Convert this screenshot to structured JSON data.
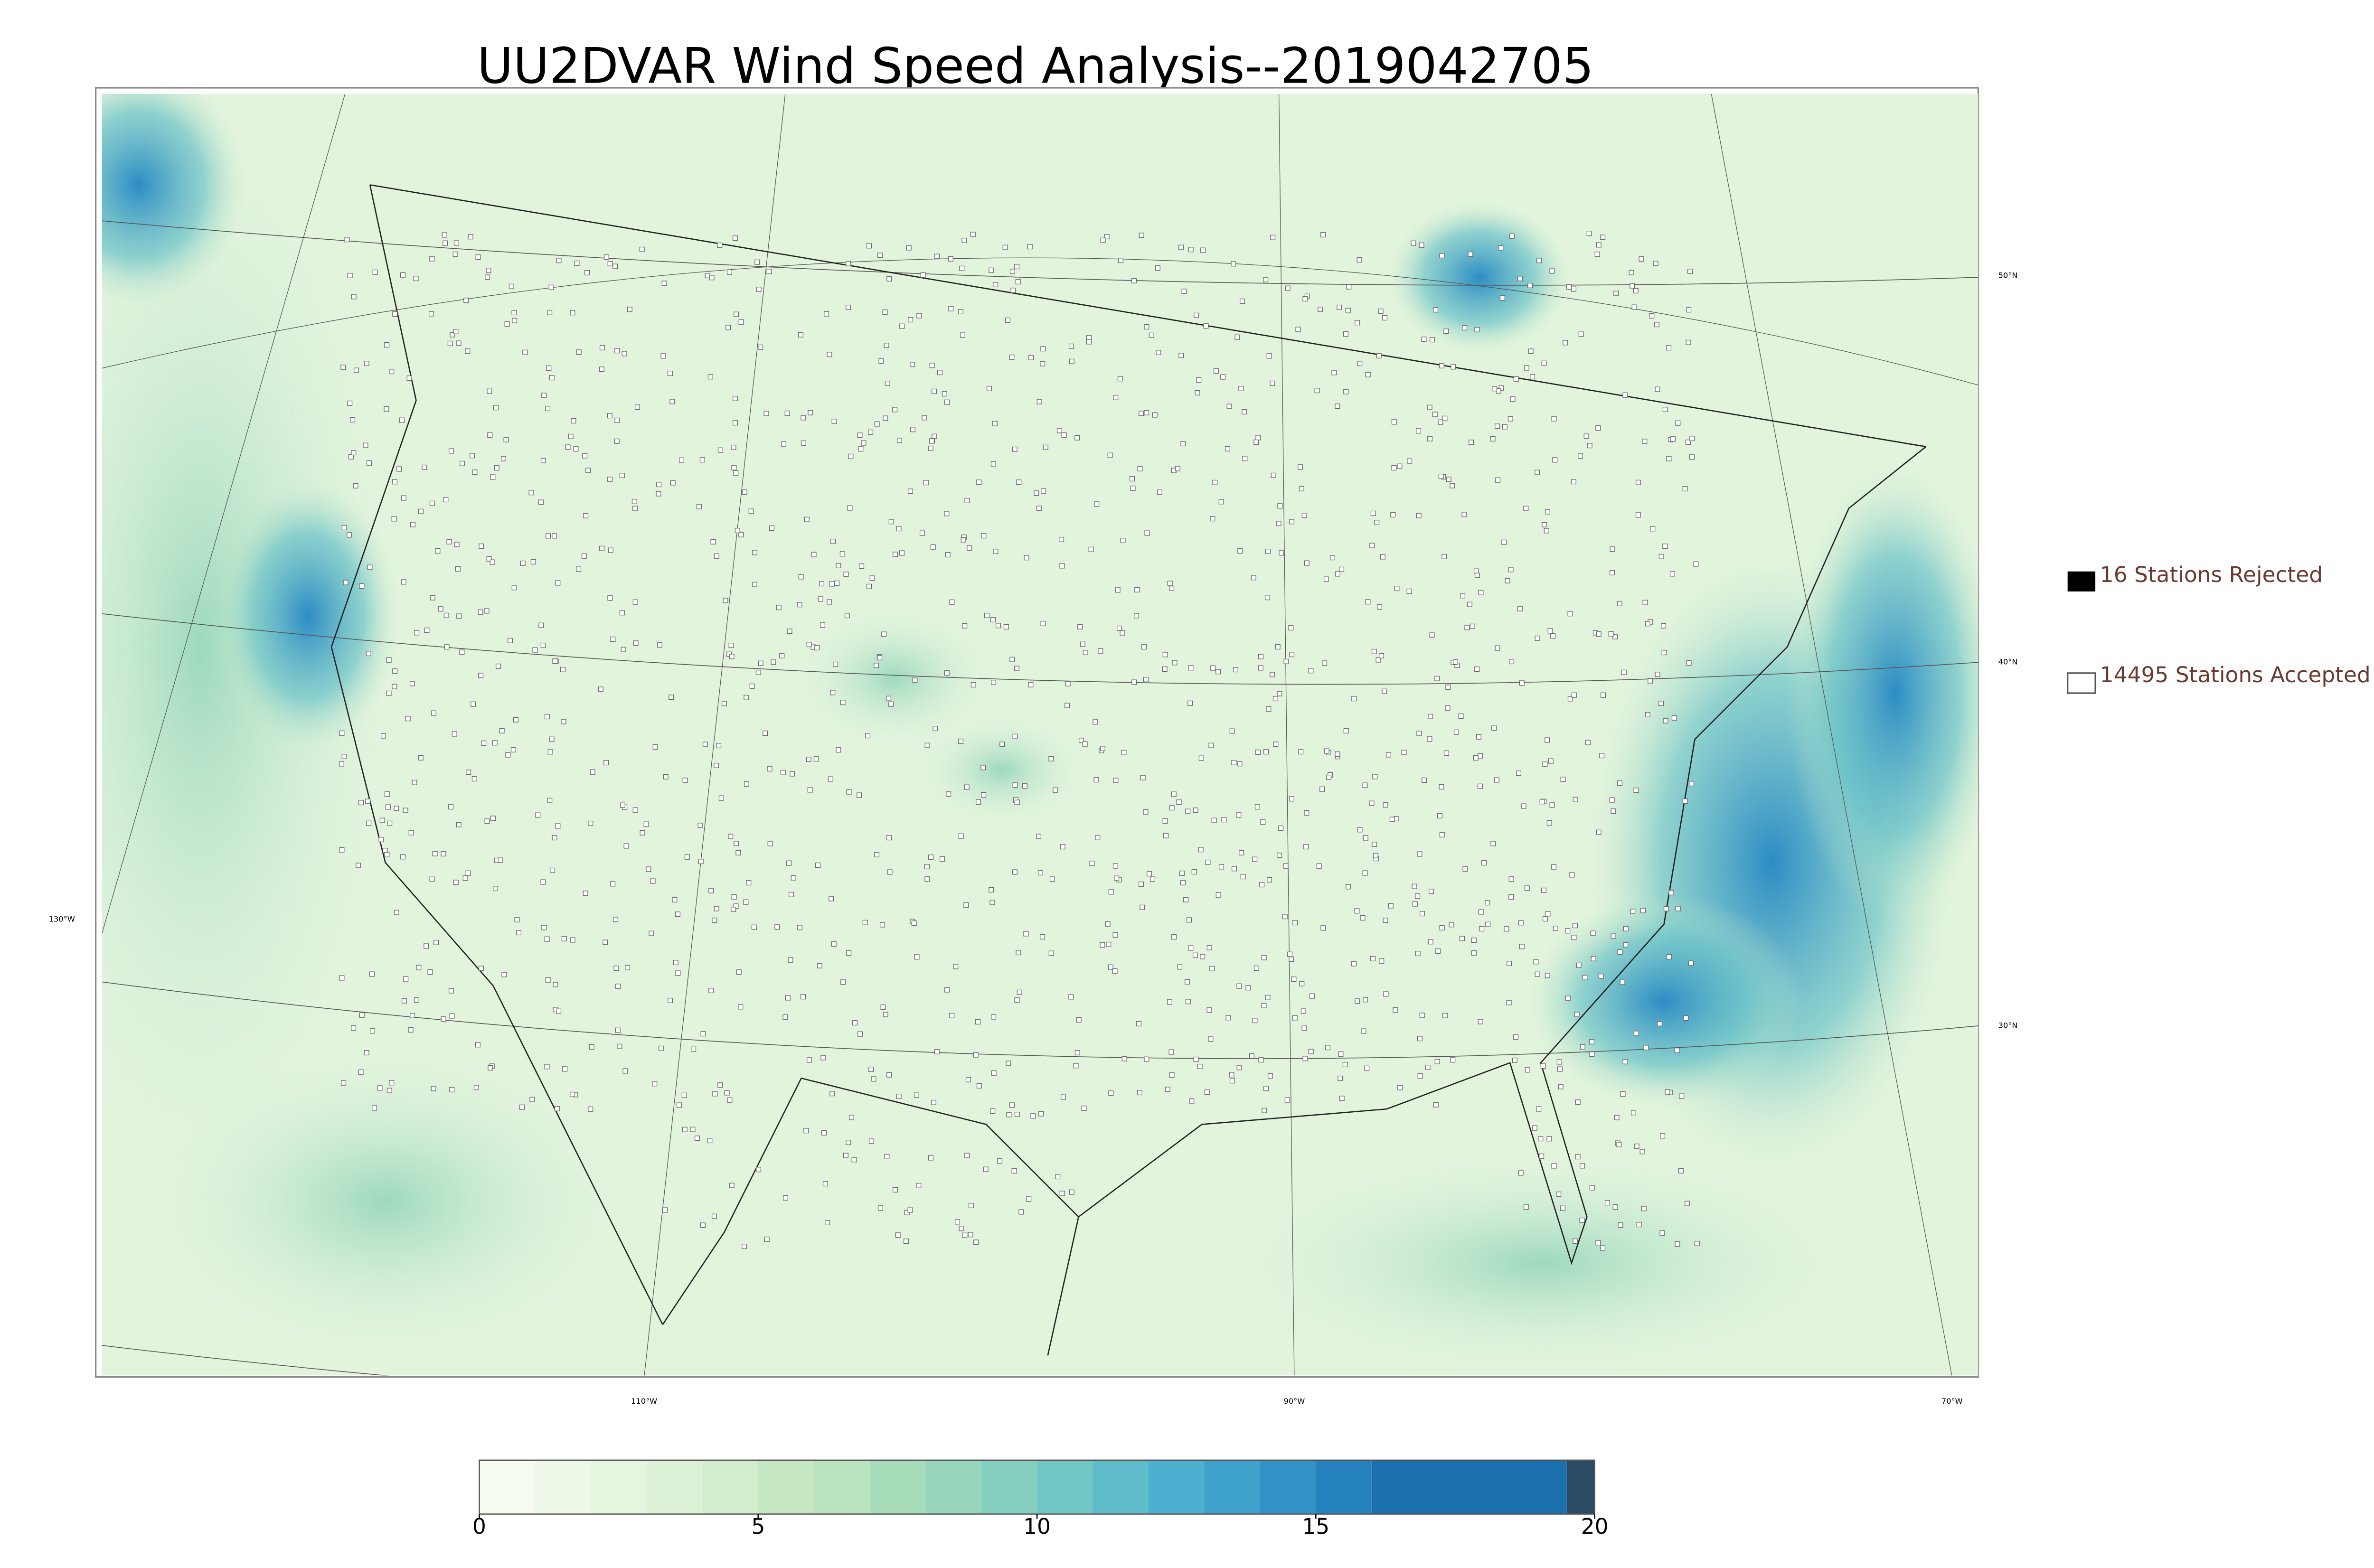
{
  "title": "UU2DVAR Wind Speed Analysis--2019042705",
  "legend": {
    "rejected": "16 Stations Rejected",
    "accepted": "14495 Stations Accepted"
  },
  "latitude_labels": [
    "50°N",
    "40°N",
    "30°N"
  ],
  "longitude_labels": [
    "130°W",
    "110°W",
    "90°W",
    "70°W"
  ],
  "colorbar": {
    "lim": [
      0,
      20
    ],
    "ticks": [
      0,
      5,
      10,
      15,
      20
    ],
    "bounds": [
      0,
      1,
      2,
      3,
      4,
      5,
      6,
      7,
      8,
      9,
      10,
      11,
      12,
      13,
      14,
      15,
      16,
      19.5,
      20
    ],
    "colors": [
      "#f7fcf0",
      "#eef8e8",
      "#e6f5e0",
      "#dcf1d6",
      "#d2edcc",
      "#c5e8c2",
      "#b8e3bd",
      "#a8ddbb",
      "#97d6bc",
      "#85cfc0",
      "#72c7c5",
      "#5fbcca",
      "#4db0d0",
      "#3fa2cd",
      "#3292c6",
      "#2582be",
      "#1a70ae",
      "#2b4a63"
    ]
  }
}
